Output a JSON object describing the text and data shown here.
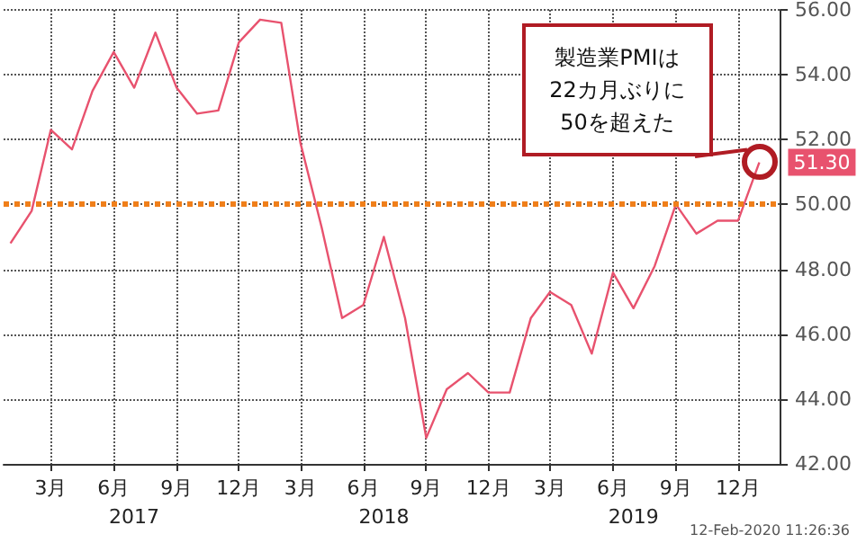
{
  "chart_data": {
    "type": "line",
    "x": [
      "2017-01",
      "2017-02",
      "2017-03",
      "2017-04",
      "2017-05",
      "2017-06",
      "2017-07",
      "2017-08",
      "2017-09",
      "2017-10",
      "2017-11",
      "2017-12",
      "2018-01",
      "2018-02",
      "2018-03",
      "2018-04",
      "2018-05",
      "2018-06",
      "2018-07",
      "2018-08",
      "2018-09",
      "2018-10",
      "2018-11",
      "2018-12",
      "2019-01",
      "2019-02",
      "2019-03",
      "2019-04",
      "2019-05",
      "2019-06",
      "2019-07",
      "2019-08",
      "2019-09",
      "2019-10",
      "2019-11",
      "2019-12",
      "2020-01"
    ],
    "series": [
      {
        "color": "#e8526e",
        "values": [
          48.8,
          49.8,
          52.3,
          51.7,
          53.5,
          54.7,
          53.6,
          55.3,
          53.6,
          52.8,
          52.9,
          55.0,
          55.7,
          55.6,
          51.9,
          49.3,
          46.5,
          46.9,
          49.0,
          46.5,
          42.8,
          44.3,
          44.8,
          44.2,
          44.2,
          46.5,
          47.3,
          46.9,
          45.4,
          47.9,
          46.8,
          48.1,
          50.0,
          49.1,
          49.5,
          49.5,
          51.3
        ],
        "value_labels": [
          null,
          null,
          null,
          null,
          null,
          null,
          null,
          null,
          null,
          null,
          null,
          null,
          null,
          null,
          null,
          null,
          null,
          null,
          null,
          null,
          null,
          null,
          null,
          null,
          null,
          null,
          null,
          null,
          null,
          null,
          null,
          null,
          null,
          null,
          null,
          null,
          "51.30"
        ]
      }
    ],
    "xlim": [
      "2016-12-22",
      "2020-02-01"
    ],
    "xticks": [
      {
        "value": "2017-03",
        "label": "3月"
      },
      {
        "value": "2017-06",
        "label": "6月"
      },
      {
        "value": "2017-09",
        "label": "9月"
      },
      {
        "value": "2017-12",
        "label": "12月"
      },
      {
        "value": "2018-03",
        "label": "3月"
      },
      {
        "value": "2018-06",
        "label": "6月"
      },
      {
        "value": "2018-09",
        "label": "9月"
      },
      {
        "value": "2018-12",
        "label": "12月"
      },
      {
        "value": "2019-03",
        "label": "3月"
      },
      {
        "value": "2019-06",
        "label": "6月"
      },
      {
        "value": "2019-09",
        "label": "9月"
      },
      {
        "value": "2019-12",
        "label": "12月"
      }
    ],
    "x2lim": [
      "2016-12-22",
      "2020-02-01"
    ],
    "x2ticks": [
      {
        "value": "2017-07",
        "label": "2017"
      },
      {
        "value": "2018-07",
        "label": "2018"
      },
      {
        "value": "2019-07",
        "label": "2019"
      }
    ],
    "ylim": [
      42,
      56
    ],
    "yticks": [
      {
        "value": 42,
        "label": "42.00"
      },
      {
        "value": 44,
        "label": "44.00"
      },
      {
        "value": 46,
        "label": "46.00"
      },
      {
        "value": 48,
        "label": "48.00"
      },
      {
        "value": 50,
        "label": "50.00"
      },
      {
        "value": 52,
        "label": "52.00"
      },
      {
        "value": 54,
        "label": "54.00"
      },
      {
        "value": 56,
        "label": "56.00"
      }
    ],
    "grid": true,
    "marker": "none",
    "line_style": "solid",
    "ref_lines": [
      {
        "axis": "y",
        "value": 50,
        "color": "#f07f1a",
        "line_style": "dotted"
      }
    ],
    "annotations": [
      "製造業PMIは\n22カ月ぶりに\n50を超えた",
      "12-Feb-2020 11:26:36"
    ]
  }
}
